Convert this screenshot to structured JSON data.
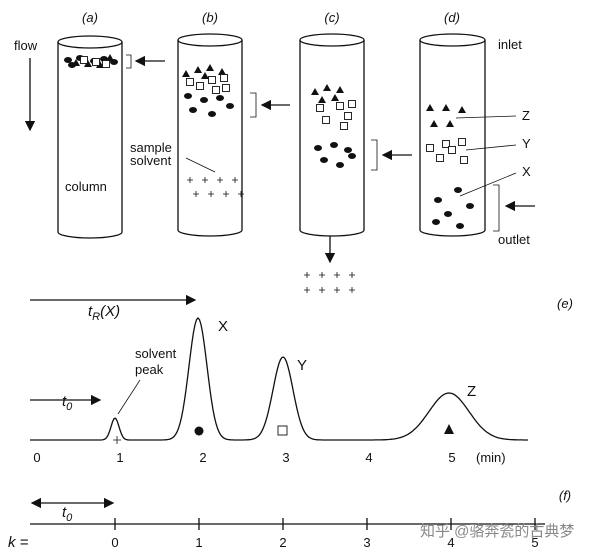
{
  "panel_labels": [
    "(a)",
    "(b)",
    "(c)",
    "(d)",
    "(e)",
    "(f)"
  ],
  "flow_label": "flow",
  "column_label": "column",
  "sample_solvent": [
    "sample",
    "solvent"
  ],
  "inlet": "inlet",
  "outlet": "outlet",
  "band_labels": [
    "Z",
    "Y",
    "X"
  ],
  "retention_label": {
    "symbol": "t",
    "subscript": "R",
    "argument": "(X)"
  },
  "dead_time_label": {
    "symbol": "t",
    "subscript": "0"
  },
  "peak_labels": [
    "X",
    "Y",
    "Z"
  ],
  "solvent_peak": [
    "solvent",
    "peak"
  ],
  "time_axis": {
    "ticks": [
      0,
      1,
      2,
      3,
      4,
      5
    ],
    "unit": "(min)"
  },
  "k_axis": {
    "label": "k =",
    "ticks": [
      0,
      1,
      2,
      3,
      4,
      5
    ]
  },
  "watermark": "知乎 @骆奔瓷的古典梦"
}
